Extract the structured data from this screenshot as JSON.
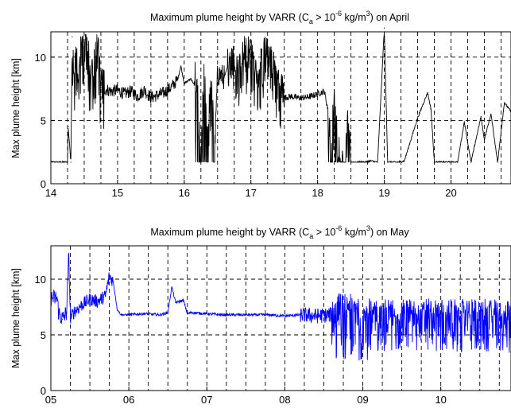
{
  "chart_data": [
    {
      "type": "line",
      "title": {
        "main": "Maximum plume height by VARR (C",
        "sub": "a",
        "mid": " > 10",
        "sup": "-6",
        "unit_pre": " kg/m",
        "unit_sup": "3",
        "tail": ") on April"
      },
      "ylabel": "Max plume height [km]",
      "xlabel": "",
      "xlim": [
        14,
        20.9
      ],
      "ylim": [
        0,
        12
      ],
      "xticks": [
        {
          "value": 14,
          "label": "14"
        },
        {
          "value": 15,
          "label": "15"
        },
        {
          "value": 16,
          "label": "16"
        },
        {
          "value": 17,
          "label": "17"
        },
        {
          "value": 18,
          "label": "18"
        },
        {
          "value": 19,
          "label": "19"
        },
        {
          "value": 20,
          "label": "20"
        }
      ],
      "yticks": [
        {
          "value": 0,
          "label": "0"
        },
        {
          "value": 5,
          "label": "5"
        },
        {
          "value": 10,
          "label": "10"
        }
      ],
      "grid": true,
      "xgrid_step": 0.25,
      "color": "#000000",
      "series": [
        {
          "x": [
            14.0,
            14.2,
            14.25,
            14.26,
            14.3,
            14.32,
            14.35,
            14.38,
            14.4,
            14.45,
            14.5,
            14.55,
            14.6,
            14.65,
            14.7,
            14.75,
            14.8,
            14.9,
            15.0,
            15.1,
            15.2,
            15.3,
            15.4,
            15.5,
            15.6,
            15.7,
            15.8,
            15.9,
            15.95,
            16.0,
            16.05,
            16.1,
            16.15,
            16.2,
            16.25,
            16.3,
            16.35,
            16.4,
            16.45,
            16.5,
            16.6,
            16.7,
            16.8,
            16.9,
            17.0,
            17.1,
            17.2,
            17.3,
            17.4,
            17.5,
            17.6,
            17.7,
            17.8,
            17.9,
            18.0,
            18.1,
            18.15,
            18.2,
            18.25,
            18.3,
            18.4,
            18.45,
            18.5,
            18.6,
            18.7,
            18.8,
            18.9,
            19.0,
            19.05,
            19.1,
            19.2,
            19.3,
            19.5,
            19.65,
            19.7,
            19.75,
            19.8,
            19.9,
            20.0,
            20.1,
            20.2,
            20.3,
            20.45,
            20.5,
            20.6,
            20.7,
            20.8,
            20.9
          ],
          "y": [
            1.7,
            1.7,
            1.7,
            4.5,
            1.7,
            11.6,
            7.2,
            10.1,
            7.3,
            10.2,
            10.5,
            11.0,
            7.8,
            9.5,
            10.8,
            7.6,
            7.5,
            7.3,
            7.4,
            7.1,
            7.3,
            6.9,
            7.4,
            6.8,
            7.0,
            7.2,
            7.6,
            8.2,
            9.3,
            7.9,
            8.1,
            8.3,
            7.8,
            5.7,
            1.7,
            7.0,
            1.7,
            6.8,
            1.7,
            8.7,
            8.4,
            10.0,
            8.5,
            10.2,
            10.0,
            8.2,
            10.1,
            9.8,
            7.8,
            6.8,
            6.9,
            6.8,
            6.8,
            6.9,
            7.1,
            7.3,
            6.0,
            1.8,
            6.1,
            1.7,
            1.7,
            4.7,
            1.7,
            1.7,
            1.7,
            1.8,
            1.7,
            12.3,
            1.7,
            1.7,
            1.7,
            1.8,
            5.2,
            7.2,
            5.9,
            1.7,
            1.7,
            1.7,
            1.7,
            1.7,
            4.9,
            1.7,
            5.3,
            3.5,
            5.5,
            1.7,
            6.4,
            5.7
          ],
          "noise": [
            [
              14.32,
              14.8,
              2.4
            ],
            [
              14.8,
              15.9,
              0.5
            ],
            [
              16.15,
              16.45,
              3.8
            ],
            [
              16.45,
              16.6,
              1.0
            ],
            [
              16.65,
              17.5,
              2.0
            ],
            [
              17.5,
              18.15,
              0.25
            ],
            [
              18.15,
              18.35,
              3.0
            ],
            [
              18.35,
              18.5,
              1.7
            ]
          ]
        }
      ]
    },
    {
      "type": "line",
      "title": {
        "main": "Maximum plume height by VARR (C",
        "sub": "a",
        "mid": " > 10",
        "sup": "-6",
        "unit_pre": " kg/m",
        "unit_sup": "3",
        "tail": ") on May"
      },
      "ylabel": "Max plume height [km]",
      "xlabel": "",
      "xlim": [
        5,
        10.9
      ],
      "ylim": [
        0,
        13
      ],
      "xticks": [
        {
          "value": 5,
          "label": "05"
        },
        {
          "value": 6,
          "label": "06"
        },
        {
          "value": 7,
          "label": "07"
        },
        {
          "value": 8,
          "label": "08"
        },
        {
          "value": 9,
          "label": "09"
        },
        {
          "value": 10,
          "label": "10"
        }
      ],
      "yticks": [
        {
          "value": 0,
          "label": "0"
        },
        {
          "value": 5,
          "label": "5"
        },
        {
          "value": 10,
          "label": "10"
        }
      ],
      "grid": true,
      "xgrid_step": 0.25,
      "color": "#0000ff",
      "series": [
        {
          "x": [
            5.0,
            5.08,
            5.1,
            5.15,
            5.2,
            5.23,
            5.25,
            5.3,
            5.4,
            5.5,
            5.6,
            5.7,
            5.75,
            5.8,
            5.85,
            5.9,
            6.0,
            6.2,
            6.4,
            6.5,
            6.55,
            6.6,
            6.7,
            6.75,
            6.8,
            7.0,
            7.2,
            7.5,
            7.8,
            8.0,
            8.2,
            8.4,
            8.6,
            8.8,
            9.0,
            9.2,
            9.5,
            9.8,
            10.0,
            10.2,
            10.5,
            10.7,
            10.9
          ],
          "y": [
            8.3,
            8.3,
            7.0,
            6.4,
            7.0,
            12.1,
            6.5,
            7.1,
            7.7,
            8.2,
            8.0,
            8.5,
            10.3,
            9.8,
            7.3,
            6.8,
            6.8,
            6.9,
            6.8,
            7.0,
            9.3,
            7.9,
            8.1,
            6.9,
            7.0,
            6.9,
            6.8,
            6.8,
            6.8,
            6.7,
            6.8,
            6.7,
            6.8,
            6.7,
            6.6,
            6.7,
            6.6,
            6.7,
            6.6,
            6.7,
            6.6,
            6.7,
            6.5
          ],
          "noise": [
            [
              5.0,
              5.25,
              0.8
            ],
            [
              5.25,
              5.8,
              0.6
            ],
            [
              6.0,
              8.2,
              0.12
            ],
            [
              8.2,
              8.6,
              0.7
            ],
            [
              8.6,
              9.1,
              2.5
            ],
            [
              9.1,
              10.9,
              2.0
            ]
          ]
        }
      ]
    }
  ]
}
